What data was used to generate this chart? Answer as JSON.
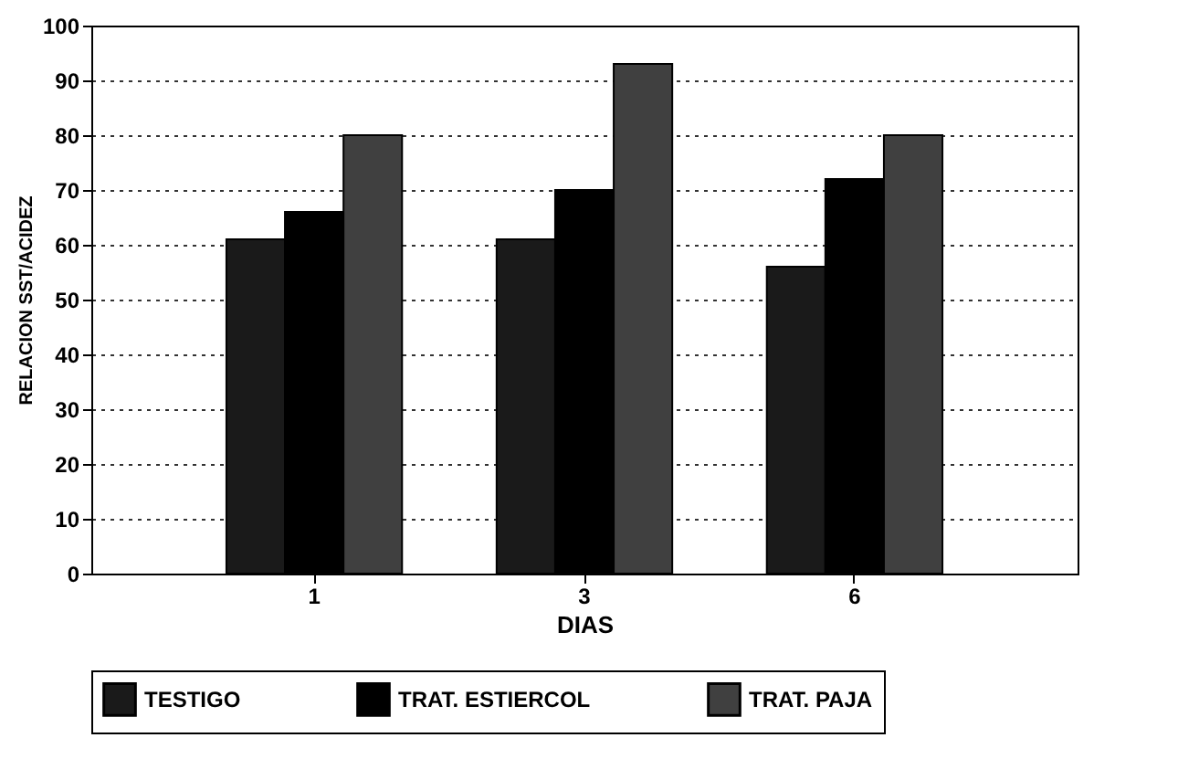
{
  "chart_data": {
    "type": "bar",
    "xlabel": "DIAS",
    "ylabel": "RELACION SST/ACIDEZ",
    "categories": [
      "1",
      "3",
      "6"
    ],
    "series": [
      {
        "name": "TESTIGO",
        "color": "#1a1a1a",
        "values": [
          61,
          61,
          56
        ]
      },
      {
        "name": "TRAT. ESTIERCOL",
        "color": "#000000",
        "values": [
          66,
          70,
          72
        ]
      },
      {
        "name": "TRAT. PAJA",
        "color": "#404040",
        "values": [
          80,
          93,
          80
        ]
      }
    ],
    "ylim": [
      0,
      100
    ],
    "yticks": [
      0,
      10,
      20,
      30,
      40,
      50,
      60,
      70,
      80,
      90,
      100
    ],
    "grid": "y",
    "legend": "bottom"
  }
}
